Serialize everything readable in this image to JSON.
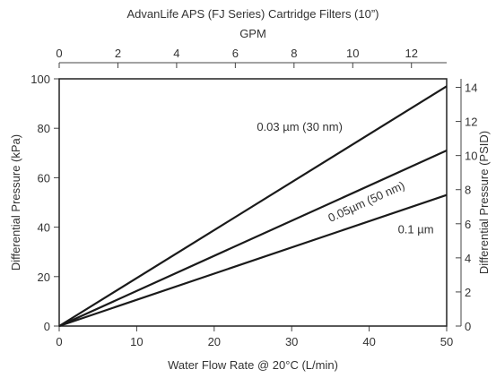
{
  "chart_data": {
    "type": "line",
    "title": "AdvanLife APS (FJ Series) Cartridge Filters (10”)",
    "xlabel": "Water Flow Rate @ 20°C (L/min)",
    "ylabel": "Differential Pressure (kPa)",
    "x2label": "GPM",
    "y2label": "Differential Pressure (PSID)",
    "xlim": [
      0,
      50
    ],
    "ylim": [
      0,
      100
    ],
    "x2lim": [
      0,
      13.2
    ],
    "y2lim": [
      0,
      14.5
    ],
    "xticks": [
      0,
      10,
      20,
      30,
      40,
      50
    ],
    "yticks": [
      0,
      20,
      40,
      60,
      80,
      100
    ],
    "x2ticks": [
      0,
      2,
      4,
      6,
      8,
      10,
      12
    ],
    "y2ticks": [
      0,
      2,
      4,
      6,
      8,
      10,
      12,
      14
    ],
    "grid": false,
    "legend": "none",
    "series": [
      {
        "label": "0.03 µm (30 nm)",
        "x": [
          0,
          50
        ],
        "y": [
          0,
          97
        ]
      },
      {
        "label": "0.05µm (50 nm)",
        "x": [
          0,
          50
        ],
        "y": [
          0,
          71
        ]
      },
      {
        "label": "0.1 µm",
        "x": [
          0,
          50
        ],
        "y": [
          0,
          53
        ]
      }
    ],
    "colors": {
      "line": "#1a1a1a",
      "axis": "#444444",
      "text": "#333333"
    }
  }
}
